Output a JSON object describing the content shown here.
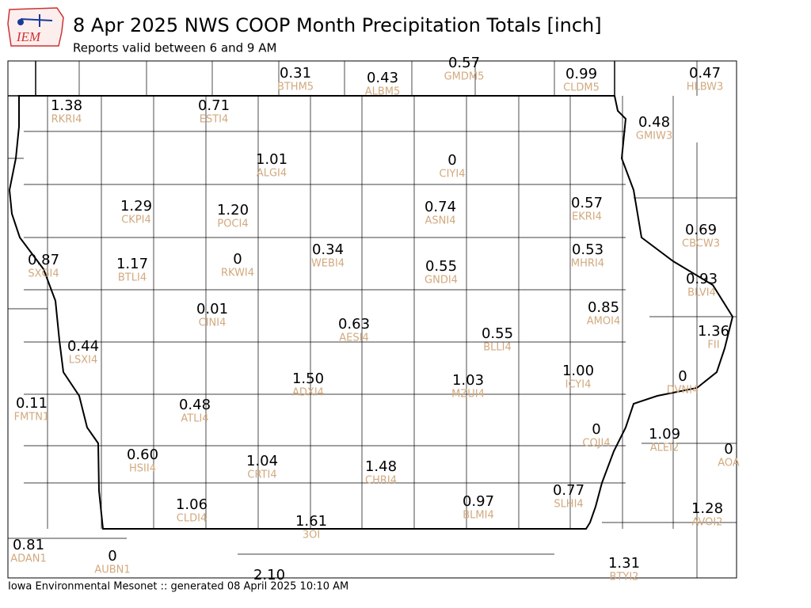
{
  "header": {
    "title": "8 Apr 2025 NWS COOP Month Precipitation Totals [inch]",
    "subtitle": "Reports valid between 6 and 9 AM",
    "logo": "IEM"
  },
  "footer": "Iowa Environmental Mesonet :: generated 08 April 2025 10:10 AM",
  "stations": [
    {
      "value": "0.31",
      "id": "BTHM5"
    },
    {
      "value": "0.43",
      "id": "ALBM5"
    },
    {
      "value": "0.57",
      "id": "GMDM5"
    },
    {
      "value": "0.99",
      "id": "CLDM5"
    },
    {
      "value": "0.47",
      "id": "HLBW3"
    },
    {
      "value": "1.38",
      "id": "RKRI4"
    },
    {
      "value": "0.71",
      "id": "ESTI4"
    },
    {
      "value": "0.48",
      "id": "GMIW3"
    },
    {
      "value": "1.01",
      "id": "ALGI4"
    },
    {
      "value": "0",
      "id": "CIYI4"
    },
    {
      "value": "1.29",
      "id": "CKPI4"
    },
    {
      "value": "1.20",
      "id": "POCI4"
    },
    {
      "value": "0.74",
      "id": "ASNI4"
    },
    {
      "value": "0.57",
      "id": "EKRI4"
    },
    {
      "value": "0.69",
      "id": "CBCW3"
    },
    {
      "value": "0.87",
      "id": "SXGI4"
    },
    {
      "value": "1.17",
      "id": "BTLI4"
    },
    {
      "value": "0",
      "id": "RKWI4"
    },
    {
      "value": "0.34",
      "id": "WEBI4"
    },
    {
      "value": "0.55",
      "id": "GNDI4"
    },
    {
      "value": "0.53",
      "id": "MHRI4"
    },
    {
      "value": "0.93",
      "id": "BLVI4"
    },
    {
      "value": "0.01",
      "id": "CINI4"
    },
    {
      "value": "0.85",
      "id": "AMOI4"
    },
    {
      "value": "0.63",
      "id": "AESI4"
    },
    {
      "value": "0.55",
      "id": "BLLI4"
    },
    {
      "value": "1.36",
      "id": "FII"
    },
    {
      "value": "0.44",
      "id": "LSXI4"
    },
    {
      "value": "1.00",
      "id": "ICYI4"
    },
    {
      "value": "0",
      "id": "DVNI4"
    },
    {
      "value": "1.50",
      "id": "ADXI4"
    },
    {
      "value": "1.03",
      "id": "MZUI4"
    },
    {
      "value": "0.11",
      "id": "FMTN1"
    },
    {
      "value": "0.48",
      "id": "ATLI4"
    },
    {
      "value": "0",
      "id": "COJI4"
    },
    {
      "value": "1.09",
      "id": "ALEI2"
    },
    {
      "value": "0",
      "id": "AOA"
    },
    {
      "value": "0.60",
      "id": "HSII4"
    },
    {
      "value": "1.04",
      "id": "CRTI4"
    },
    {
      "value": "1.48",
      "id": "CHRI4"
    },
    {
      "value": "0.77",
      "id": "SLHI4"
    },
    {
      "value": "0.97",
      "id": "BLMI4"
    },
    {
      "value": "1.06",
      "id": "CLDI4"
    },
    {
      "value": "1.28",
      "id": "AVOI2"
    },
    {
      "value": "1.61",
      "id": "3OI"
    },
    {
      "value": "0.81",
      "id": "ADAN1"
    },
    {
      "value": "0",
      "id": "AUBN1"
    },
    {
      "value": "1.31",
      "id": "BTYI2"
    },
    {
      "value": "2.10"
    }
  ]
}
